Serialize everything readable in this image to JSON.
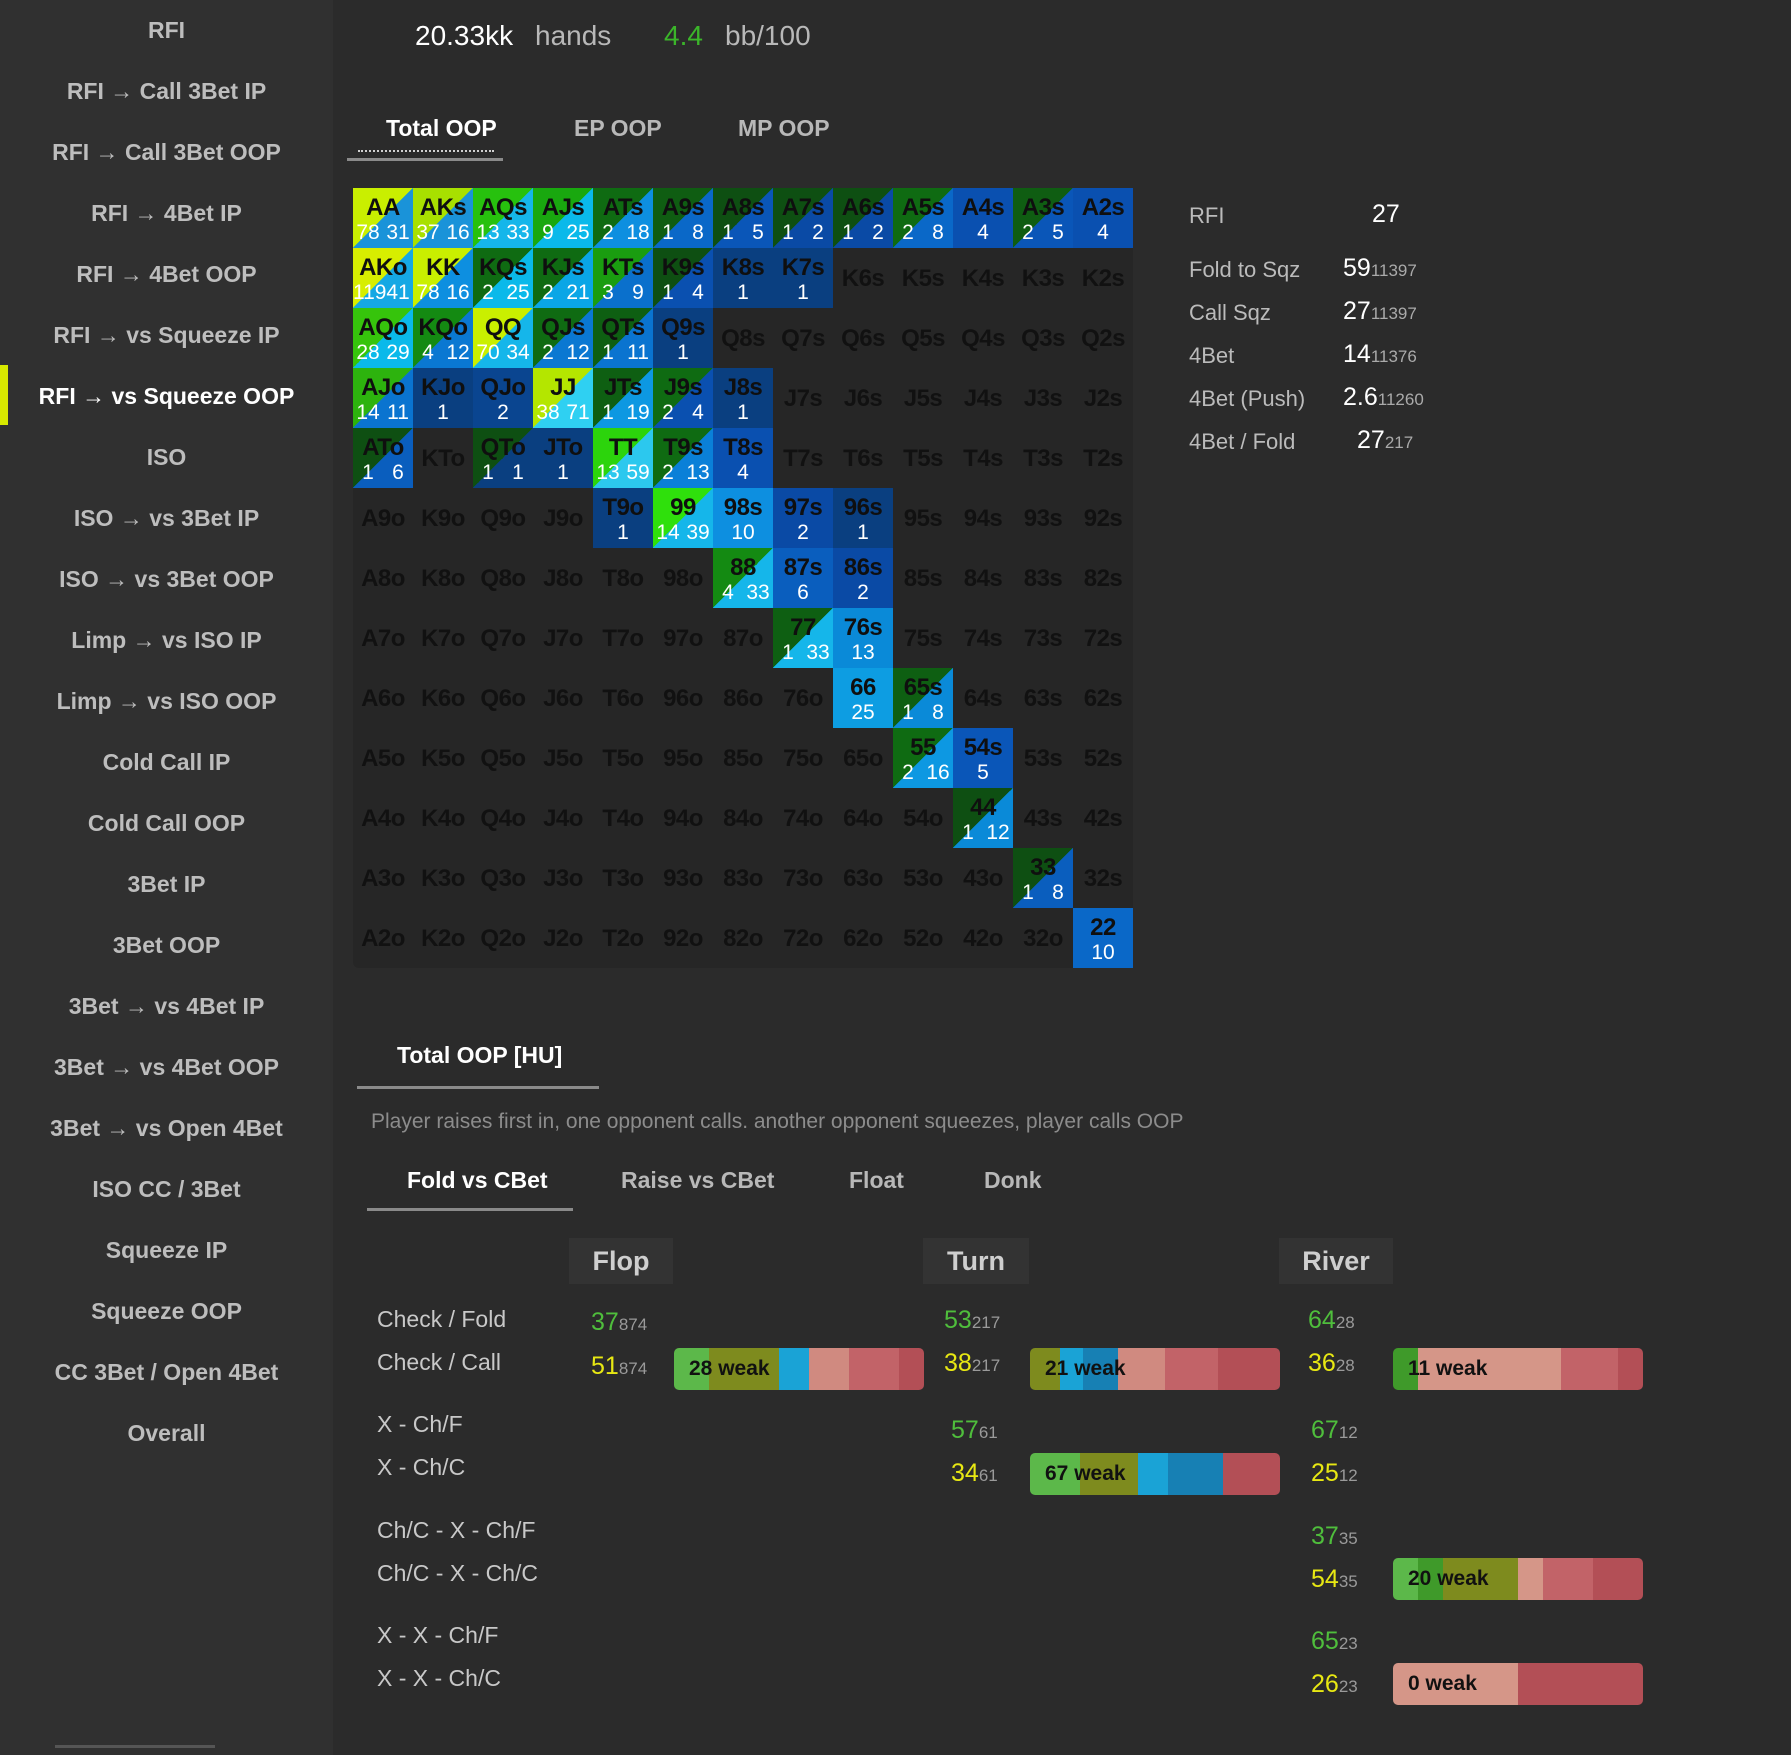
{
  "sidebar": {
    "items": [
      {
        "label": "RFI",
        "active": false
      },
      {
        "label": "RFI → Call 3Bet IP",
        "active": false
      },
      {
        "label": "RFI → Call 3Bet OOP",
        "active": false
      },
      {
        "label": "RFI → 4Bet IP",
        "active": false
      },
      {
        "label": "RFI → 4Bet OOP",
        "active": false
      },
      {
        "label": "RFI → vs Squeeze IP",
        "active": false
      },
      {
        "label": "RFI → vs Squeeze OOP",
        "active": true
      },
      {
        "label": "ISO",
        "active": false
      },
      {
        "label": "ISO → vs 3Bet IP",
        "active": false
      },
      {
        "label": "ISO → vs 3Bet OOP",
        "active": false
      },
      {
        "label": "Limp → vs ISO IP",
        "active": false
      },
      {
        "label": "Limp → vs ISO OOP",
        "active": false
      },
      {
        "label": "Cold Call IP",
        "active": false
      },
      {
        "label": "Cold Call OOP",
        "active": false
      },
      {
        "label": "3Bet IP",
        "active": false
      },
      {
        "label": "3Bet OOP",
        "active": false
      },
      {
        "label": "3Bet → vs 4Bet IP",
        "active": false
      },
      {
        "label": "3Bet → vs 4Bet OOP",
        "active": false
      },
      {
        "label": "3Bet → vs Open 4Bet",
        "active": false
      },
      {
        "label": "ISO CC / 3Bet",
        "active": false
      },
      {
        "label": "Squeeze IP",
        "active": false
      },
      {
        "label": "Squeeze OOP",
        "active": false
      },
      {
        "label": "CC 3Bet / Open 4Bet",
        "active": false
      },
      {
        "label": "Overall",
        "active": false
      }
    ]
  },
  "header": {
    "hands_value": "20.33kk",
    "hands_label": "hands",
    "winrate_value": "4.4",
    "winrate_label": "bb/100"
  },
  "position_tabs": [
    {
      "label": "Total OOP",
      "active": true
    },
    {
      "label": "EP OOP",
      "active": false
    },
    {
      "label": "MP OOP",
      "active": false
    }
  ],
  "range_grid": {
    "ranks": [
      "A",
      "K",
      "Q",
      "J",
      "T",
      "9",
      "8",
      "7",
      "6",
      "5",
      "4",
      "3",
      "2"
    ],
    "cells": {
      "AA": {
        "a": "78",
        "b": "31",
        "c": [
          "#c9ef00",
          "#1a93d9"
        ]
      },
      "AKs": {
        "a": "37",
        "b": "16",
        "c": [
          "#a8e000",
          "#1a93d9"
        ]
      },
      "AQs": {
        "a": "13",
        "b": "33",
        "c": [
          "#27c10e",
          "#15b6ea"
        ]
      },
      "AJs": {
        "a": "9",
        "b": "25",
        "c": [
          "#19a80f",
          "#0ab9ea"
        ]
      },
      "ATs": {
        "a": "2",
        "b": "18",
        "c": [
          "#0f6b12",
          "#0d8fe0"
        ]
      },
      "A9s": {
        "a": "1",
        "b": "8",
        "c": [
          "#0f5d12",
          "#0a68c8"
        ]
      },
      "A8s": {
        "a": "1",
        "b": "5",
        "c": [
          "#0e4f12",
          "#0a56b8"
        ]
      },
      "A7s": {
        "a": "1",
        "b": "2",
        "c": [
          "#0e4f12",
          "#0a4aa5"
        ]
      },
      "A6s": {
        "a": "1",
        "b": "2",
        "c": [
          "#0e4f12",
          "#0a4aa5"
        ]
      },
      "A5s": {
        "a": "2",
        "b": "8",
        "c": [
          "#0f6b12",
          "#0a68c8"
        ]
      },
      "A4s": {
        "a": "",
        "b": "4",
        "c": [
          "#0a50b0",
          "#0a50b0"
        ]
      },
      "A3s": {
        "a": "2",
        "b": "5",
        "c": [
          "#0f5d12",
          "#0a56b8"
        ]
      },
      "A2s": {
        "a": "",
        "b": "4",
        "c": [
          "#0a50b0",
          "#0a50b0"
        ]
      },
      "AKo": {
        "a": "119",
        "b": "41",
        "c": [
          "#d7ee00",
          "#15a8e4"
        ]
      },
      "KK": {
        "a": "78",
        "b": "16",
        "c": [
          "#c9ef00",
          "#0d8fe0"
        ]
      },
      "KQs": {
        "a": "2",
        "b": "25",
        "c": [
          "#0f6b12",
          "#0ab9ea"
        ]
      },
      "KJs": {
        "a": "2",
        "b": "21",
        "c": [
          "#0f6b12",
          "#0aa6e6"
        ]
      },
      "KTs": {
        "a": "3",
        "b": "9",
        "c": [
          "#1a9d10",
          "#0a70cc"
        ]
      },
      "K9s": {
        "a": "1",
        "b": "4",
        "c": [
          "#0e4f12",
          "#0a50b0"
        ]
      },
      "K8s": {
        "a": "",
        "b": "1",
        "c": [
          "#0a3f80",
          "#0a3f80"
        ]
      },
      "K7s": {
        "a": "",
        "b": "1",
        "c": [
          "#0a3f80",
          "#0a3f80"
        ]
      },
      "AQo": {
        "a": "28",
        "b": "29",
        "c": [
          "#36c40c",
          "#0ab9ea"
        ]
      },
      "KQo": {
        "a": "4",
        "b": "12",
        "c": [
          "#148a12",
          "#0a78d2"
        ]
      },
      "QQ": {
        "a": "70",
        "b": "34",
        "c": [
          "#c9ef00",
          "#15b6ea"
        ]
      },
      "QJs": {
        "a": "2",
        "b": "12",
        "c": [
          "#0f6b12",
          "#0a78d2"
        ]
      },
      "QTs": {
        "a": "1",
        "b": "11",
        "c": [
          "#0e5f12",
          "#0a74d0"
        ]
      },
      "Q9s": {
        "a": "",
        "b": "1",
        "c": [
          "#0a3f80",
          "#0a3f80"
        ]
      },
      "AJo": {
        "a": "14",
        "b": "11",
        "c": [
          "#2db30e",
          "#0a74d0"
        ]
      },
      "KJo": {
        "a": "",
        "b": "1",
        "c": [
          "#0a3f80",
          "#0a3f80"
        ]
      },
      "QJo": {
        "a": "",
        "b": "2",
        "c": [
          "#0a4590",
          "#0a4590"
        ]
      },
      "JJ": {
        "a": "38",
        "b": "71",
        "c": [
          "#b4e600",
          "#2fd0f2"
        ]
      },
      "JTs": {
        "a": "1",
        "b": "19",
        "c": [
          "#0e5f12",
          "#0d98e2"
        ]
      },
      "J9s": {
        "a": "2",
        "b": "4",
        "c": [
          "#0f6b12",
          "#0a50b0"
        ]
      },
      "J8s": {
        "a": "",
        "b": "1",
        "c": [
          "#0a3f80",
          "#0a3f80"
        ]
      },
      "ATo": {
        "a": "1",
        "b": "6",
        "c": [
          "#0e4f12",
          "#0a5ebe"
        ]
      },
      "QTo": {
        "a": "1",
        "b": "1",
        "c": [
          "#0e4f12",
          "#0a3f80"
        ]
      },
      "JTo": {
        "a": "",
        "b": "1",
        "c": [
          "#0a3f80",
          "#0a3f80"
        ]
      },
      "TT": {
        "a": "13",
        "b": "59",
        "c": [
          "#2cd40c",
          "#2cc8ee"
        ]
      },
      "T9s": {
        "a": "2",
        "b": "13",
        "c": [
          "#0f6b12",
          "#0a80d8"
        ]
      },
      "T8s": {
        "a": "",
        "b": "4",
        "c": [
          "#0a50b0",
          "#0a50b0"
        ]
      },
      "T9o": {
        "a": "",
        "b": "1",
        "c": [
          "#0a3f80",
          "#0a3f80"
        ]
      },
      "99": {
        "a": "14",
        "b": "39",
        "c": [
          "#2fe00c",
          "#15b6ea"
        ]
      },
      "98s": {
        "a": "",
        "b": "10",
        "c": [
          "#0d8fe0",
          "#0d8fe0"
        ]
      },
      "97s": {
        "a": "",
        "b": "2",
        "c": [
          "#0a4aa5",
          "#0a4aa5"
        ]
      },
      "96s": {
        "a": "",
        "b": "1",
        "c": [
          "#0a3f80",
          "#0a3f80"
        ]
      },
      "88": {
        "a": "4",
        "b": "33",
        "c": [
          "#148a12",
          "#15b6ea"
        ]
      },
      "87s": {
        "a": "",
        "b": "6",
        "c": [
          "#0a5ebe",
          "#0a5ebe"
        ]
      },
      "86s": {
        "a": "",
        "b": "2",
        "c": [
          "#0a4aa5",
          "#0a4aa5"
        ]
      },
      "77": {
        "a": "1",
        "b": "33",
        "c": [
          "#0e5f12",
          "#15b6ea"
        ]
      },
      "76s": {
        "a": "",
        "b": "13",
        "c": [
          "#0a8ad8",
          "#0a8ad8"
        ]
      },
      "66": {
        "a": "",
        "b": "25",
        "c": [
          "#0d9de2",
          "#0d9de2"
        ]
      },
      "65s": {
        "a": "1",
        "b": "8",
        "c": [
          "#0e5f12",
          "#0a8ad8"
        ]
      },
      "55": {
        "a": "2",
        "b": "16",
        "c": [
          "#0f6b12",
          "#0d98e2"
        ]
      },
      "54s": {
        "a": "",
        "b": "5",
        "c": [
          "#0a56b8",
          "#0a56b8"
        ]
      },
      "44": {
        "a": "1",
        "b": "12",
        "c": [
          "#0e4f12",
          "#0a8ad8"
        ]
      },
      "33": {
        "a": "1",
        "b": "8",
        "c": [
          "#0e4f12",
          "#0a5ebe"
        ]
      },
      "22": {
        "a": "",
        "b": "10",
        "c": [
          "#0a68c8",
          "#0a68c8"
        ]
      }
    }
  },
  "side_stats": [
    {
      "label": "RFI",
      "value": "27",
      "sample": ""
    },
    {
      "label": "Fold to Sqz",
      "value": "59",
      "sample": "11397"
    },
    {
      "label": "Call Sqz",
      "value": "27",
      "sample": "11397"
    },
    {
      "label": "4Bet",
      "value": "14",
      "sample": "11376"
    },
    {
      "label": "4Bet (Push)",
      "value": "2.6",
      "sample": "11260"
    },
    {
      "label": "4Bet / Fold",
      "value": "27",
      "sample": "217"
    }
  ],
  "sub_tab": {
    "label": "Total OOP [HU]"
  },
  "description": "Player raises first in, one opponent calls. another opponent squeezes, player calls OOP",
  "action_tabs": [
    {
      "label": "Fold vs CBet",
      "active": true
    },
    {
      "label": "Raise vs CBet",
      "active": false
    },
    {
      "label": "Float",
      "active": false
    },
    {
      "label": "Donk",
      "active": false
    }
  ],
  "streets": [
    "Flop",
    "Turn",
    "River"
  ],
  "row_labels": [
    "Check / Fold",
    "Check / Call",
    "X - Ch/F",
    "X - Ch/C",
    "Ch/C - X - Ch/F",
    "Ch/C - X - Ch/C",
    "X - X - Ch/F",
    "X - X - Ch/C"
  ],
  "line_stats": {
    "flop_cf": {
      "value": "37",
      "sample": "874"
    },
    "flop_cc": {
      "value": "51",
      "sample": "874"
    },
    "turn_cf": {
      "value": "53",
      "sample": "217"
    },
    "turn_cc": {
      "value": "38",
      "sample": "217"
    },
    "river_cf": {
      "value": "64",
      "sample": "28"
    },
    "river_cc": {
      "value": "36",
      "sample": "28"
    },
    "turn_xf": {
      "value": "57",
      "sample": "61"
    },
    "turn_xc": {
      "value": "34",
      "sample": "61"
    },
    "river_xf": {
      "value": "67",
      "sample": "12"
    },
    "river_xc": {
      "value": "25",
      "sample": "12"
    },
    "river_cxf": {
      "value": "37",
      "sample": "35"
    },
    "river_cxc": {
      "value": "54",
      "sample": "35"
    },
    "river_xxf": {
      "value": "65",
      "sample": "23"
    },
    "river_xxc": {
      "value": "26",
      "sample": "23"
    }
  },
  "bars": {
    "flop_cc": {
      "label": "28 weak",
      "segments": [
        {
          "color": "#5cb84a",
          "frac": 0.14
        },
        {
          "color": "#7e8b1e",
          "frac": 0.28
        },
        {
          "color": "#1aa3d6",
          "frac": 0.12
        },
        {
          "color": "#d08a80",
          "frac": 0.16
        },
        {
          "color": "#c26368",
          "frac": 0.2
        },
        {
          "color": "#b34f56",
          "frac": 0.1
        }
      ]
    },
    "turn_cc": {
      "label": "21 weak",
      "segments": [
        {
          "color": "#7e8b1e",
          "frac": 0.12
        },
        {
          "color": "#1aa3d6",
          "frac": 0.09
        },
        {
          "color": "#1780b4",
          "frac": 0.14
        },
        {
          "color": "#d08a80",
          "frac": 0.19
        },
        {
          "color": "#c26368",
          "frac": 0.21
        },
        {
          "color": "#b34f56",
          "frac": 0.25
        }
      ]
    },
    "river_cc": {
      "label": "11 weak",
      "segments": [
        {
          "color": "#3f9a2a",
          "frac": 0.1
        },
        {
          "color": "#d59688",
          "frac": 0.57
        },
        {
          "color": "#c26368",
          "frac": 0.23
        },
        {
          "color": "#b34f56",
          "frac": 0.1
        }
      ]
    },
    "turn_xc": {
      "label": "67 weak",
      "segments": [
        {
          "color": "#5cb84a",
          "frac": 0.2
        },
        {
          "color": "#7e8b1e",
          "frac": 0.23
        },
        {
          "color": "#1aa3d6",
          "frac": 0.12
        },
        {
          "color": "#1780b4",
          "frac": 0.22
        },
        {
          "color": "#b34f56",
          "frac": 0.23
        }
      ]
    },
    "river_cxc": {
      "label": "20 weak",
      "segments": [
        {
          "color": "#5cb84a",
          "frac": 0.1
        },
        {
          "color": "#3f9a2a",
          "frac": 0.1
        },
        {
          "color": "#7e8b1e",
          "frac": 0.3
        },
        {
          "color": "#d59688",
          "frac": 0.1
        },
        {
          "color": "#c26368",
          "frac": 0.2
        },
        {
          "color": "#b34f56",
          "frac": 0.2
        }
      ]
    },
    "river_xxc": {
      "label": "0 weak",
      "segments": [
        {
          "color": "#d59688",
          "frac": 0.5
        },
        {
          "color": "#b34f56",
          "frac": 0.5
        }
      ]
    }
  }
}
